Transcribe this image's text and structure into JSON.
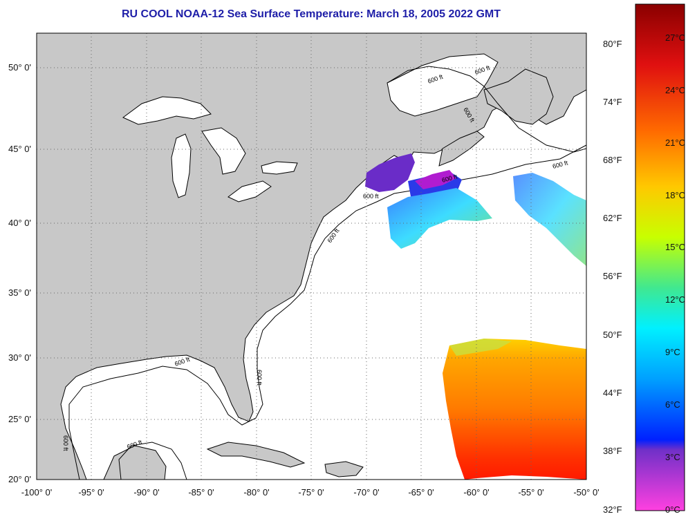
{
  "title": "RU COOL  NOAA-12  Sea Surface Temperature:  March 18, 2005 2022 GMT",
  "lat_labels": [
    "50° 0'",
    "45° 0'",
    "40° 0'",
    "35° 0'",
    "30° 0'",
    "25° 0'",
    "20° 0'"
  ],
  "lon_labels": [
    "-100° 0'",
    "-95° 0'",
    "-90° 0'",
    "-85° 0'",
    "-80° 0'",
    "-75° 0'",
    "-70° 0'",
    "-65° 0'",
    "-60° 0'",
    "-55° 0'",
    "-50° 0'"
  ],
  "contour_label": "600 ft",
  "colorbar": {
    "fahrenheit": [
      "80°F",
      "74°F",
      "68°F",
      "62°F",
      "56°F",
      "50°F",
      "44°F",
      "38°F",
      "32°F"
    ],
    "celsius": [
      "27°C",
      "24°C",
      "21°C",
      "18°C",
      "15°C",
      "12°C",
      "9°C",
      "6°C",
      "3°C",
      "0°C"
    ]
  },
  "colors": {
    "title": "#1e1ea8",
    "land": "#c8c8c8",
    "ocean_no_data": "#ffffff",
    "grid": "#666666"
  }
}
